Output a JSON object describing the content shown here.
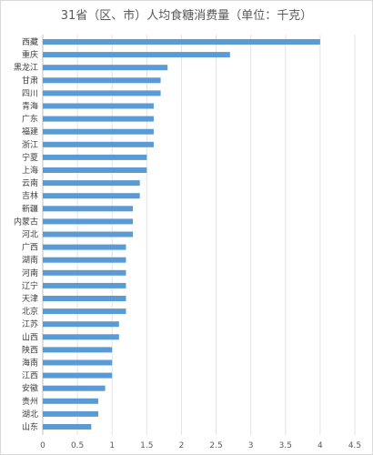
{
  "chart_data": {
    "type": "bar",
    "orientation": "horizontal",
    "title": "31省（区、市）人均食糖消费量（单位：千克）",
    "categories": [
      "西藏",
      "重庆",
      "黑龙江",
      "甘肃",
      "四川",
      "青海",
      "广东",
      "福建",
      "浙江",
      "宁夏",
      "上海",
      "云南",
      "吉林",
      "新疆",
      "内蒙古",
      "河北",
      "广西",
      "湖南",
      "河南",
      "辽宁",
      "天津",
      "北京",
      "江苏",
      "山西",
      "陕西",
      "海南",
      "江西",
      "安徽",
      "贵州",
      "湖北",
      "山东"
    ],
    "values": [
      4.0,
      2.7,
      1.8,
      1.7,
      1.7,
      1.6,
      1.6,
      1.6,
      1.6,
      1.5,
      1.5,
      1.4,
      1.4,
      1.3,
      1.3,
      1.3,
      1.2,
      1.2,
      1.2,
      1.2,
      1.2,
      1.2,
      1.1,
      1.1,
      1.0,
      1.0,
      1.0,
      0.9,
      0.8,
      0.8,
      0.7
    ],
    "xlim": [
      0,
      4.5
    ],
    "xticks": [
      0,
      0.5,
      1,
      1.5,
      2,
      2.5,
      3,
      3.5,
      4,
      4.5
    ],
    "xtick_labels": [
      "0",
      "0.5",
      "1",
      "1.5",
      "2",
      "2.5",
      "3",
      "3.5",
      "4",
      "4.5"
    ],
    "grid": true,
    "legend": "none",
    "bar_color": "#5b9bd5"
  }
}
